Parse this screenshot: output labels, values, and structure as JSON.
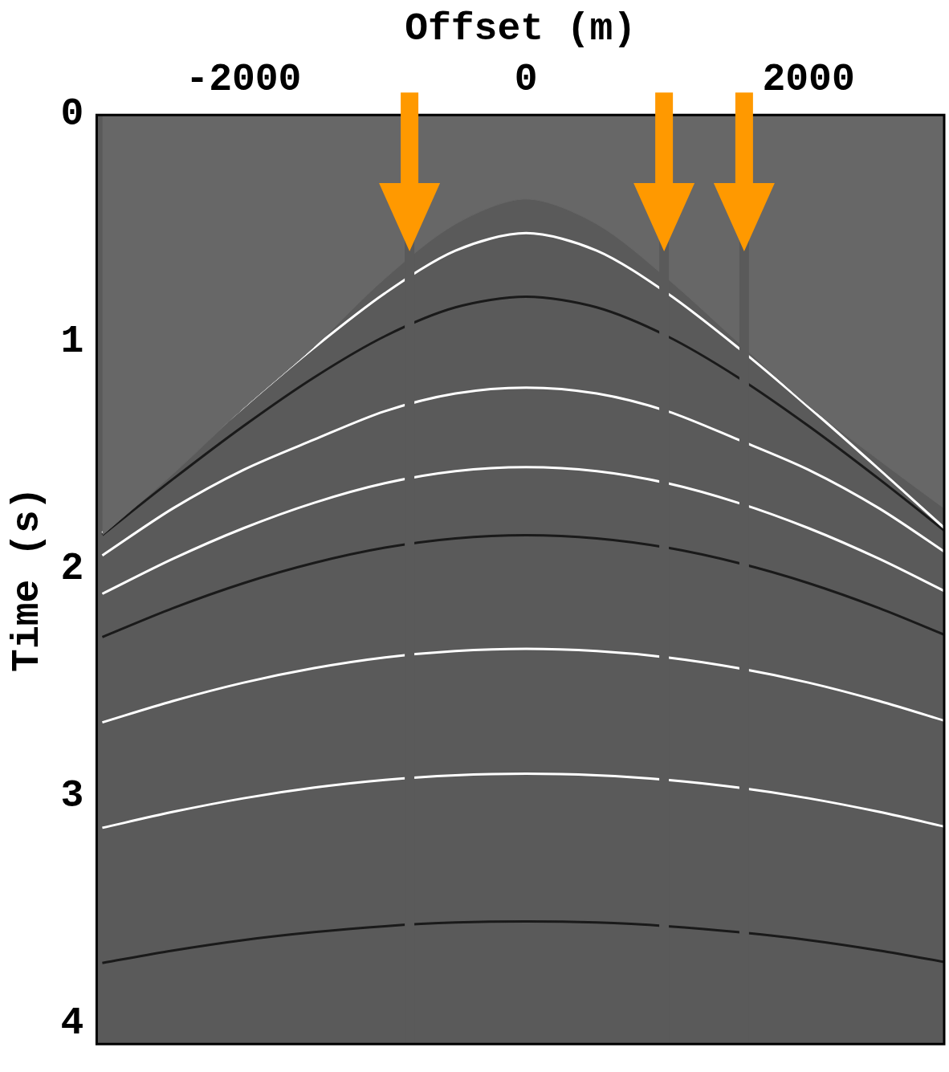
{
  "chart_data": {
    "type": "line",
    "x_label": "Offset (m)",
    "y_label": "Time (s)",
    "xlim": [
      -3040,
      2960
    ],
    "ylim": [
      0,
      4.09
    ],
    "xticks": [
      -2000,
      0,
      2000
    ],
    "yticks": [
      0,
      1,
      2,
      3,
      4
    ],
    "grid": false,
    "x": [
      -3000,
      -2500,
      -2000,
      -1500,
      -1000,
      -500,
      0,
      500,
      1000,
      1500,
      2000,
      2500,
      3000
    ],
    "data_top": {
      "color": "#676767",
      "values": [
        1.85,
        1.58,
        1.29,
        1.02,
        0.72,
        0.48,
        0.37,
        0.48,
        0.72,
        1.0,
        1.28,
        1.52,
        1.75
      ]
    },
    "series": [
      {
        "color": "#ffffff",
        "values": [
          1.84,
          1.56,
          1.286,
          1.024,
          0.785,
          0.597,
          0.52,
          0.597,
          0.785,
          1.024,
          1.286,
          1.56,
          1.84
        ]
      },
      {
        "color": "#1a1a1a",
        "values": [
          1.849,
          1.603,
          1.369,
          1.155,
          0.974,
          0.847,
          0.8,
          0.847,
          0.974,
          1.155,
          1.369,
          1.603,
          1.849
        ]
      },
      {
        "color": "#ffffff",
        "values": [
          1.939,
          1.732,
          1.562,
          1.429,
          1.304,
          1.226,
          1.2,
          1.226,
          1.304,
          1.429,
          1.562,
          1.732,
          1.939
        ]
      },
      {
        "color": "#ffffff",
        "values": [
          2.108,
          1.954,
          1.819,
          1.707,
          1.621,
          1.568,
          1.55,
          1.568,
          1.621,
          1.707,
          1.819,
          1.954,
          2.108
        ]
      },
      {
        "color": "#1a1a1a",
        "values": [
          2.298,
          2.171,
          2.061,
          1.972,
          1.905,
          1.864,
          1.85,
          1.864,
          1.905,
          1.972,
          2.061,
          2.171,
          2.298
        ]
      },
      {
        "color": "#ffffff",
        "values": [
          2.674,
          2.58,
          2.499,
          2.435,
          2.388,
          2.36,
          2.35,
          2.36,
          2.388,
          2.435,
          2.499,
          2.58,
          2.674
        ]
      },
      {
        "color": "#ffffff",
        "values": [
          3.138,
          3.068,
          3.008,
          2.961,
          2.927,
          2.907,
          2.9,
          2.907,
          2.927,
          2.961,
          3.008,
          3.068,
          3.138
        ]
      },
      {
        "color": "#1a1a1a",
        "values": [
          3.733,
          3.678,
          3.632,
          3.597,
          3.571,
          3.555,
          3.55,
          3.555,
          3.571,
          3.597,
          3.632,
          3.678,
          3.733
        ]
      }
    ],
    "dead_traces": [
      -825,
      977,
      1544
    ],
    "arrows": {
      "color": "#ff9900",
      "x": [
        -825,
        977,
        1544
      ],
      "y": [
        0.6,
        0.6,
        0.6
      ]
    }
  }
}
